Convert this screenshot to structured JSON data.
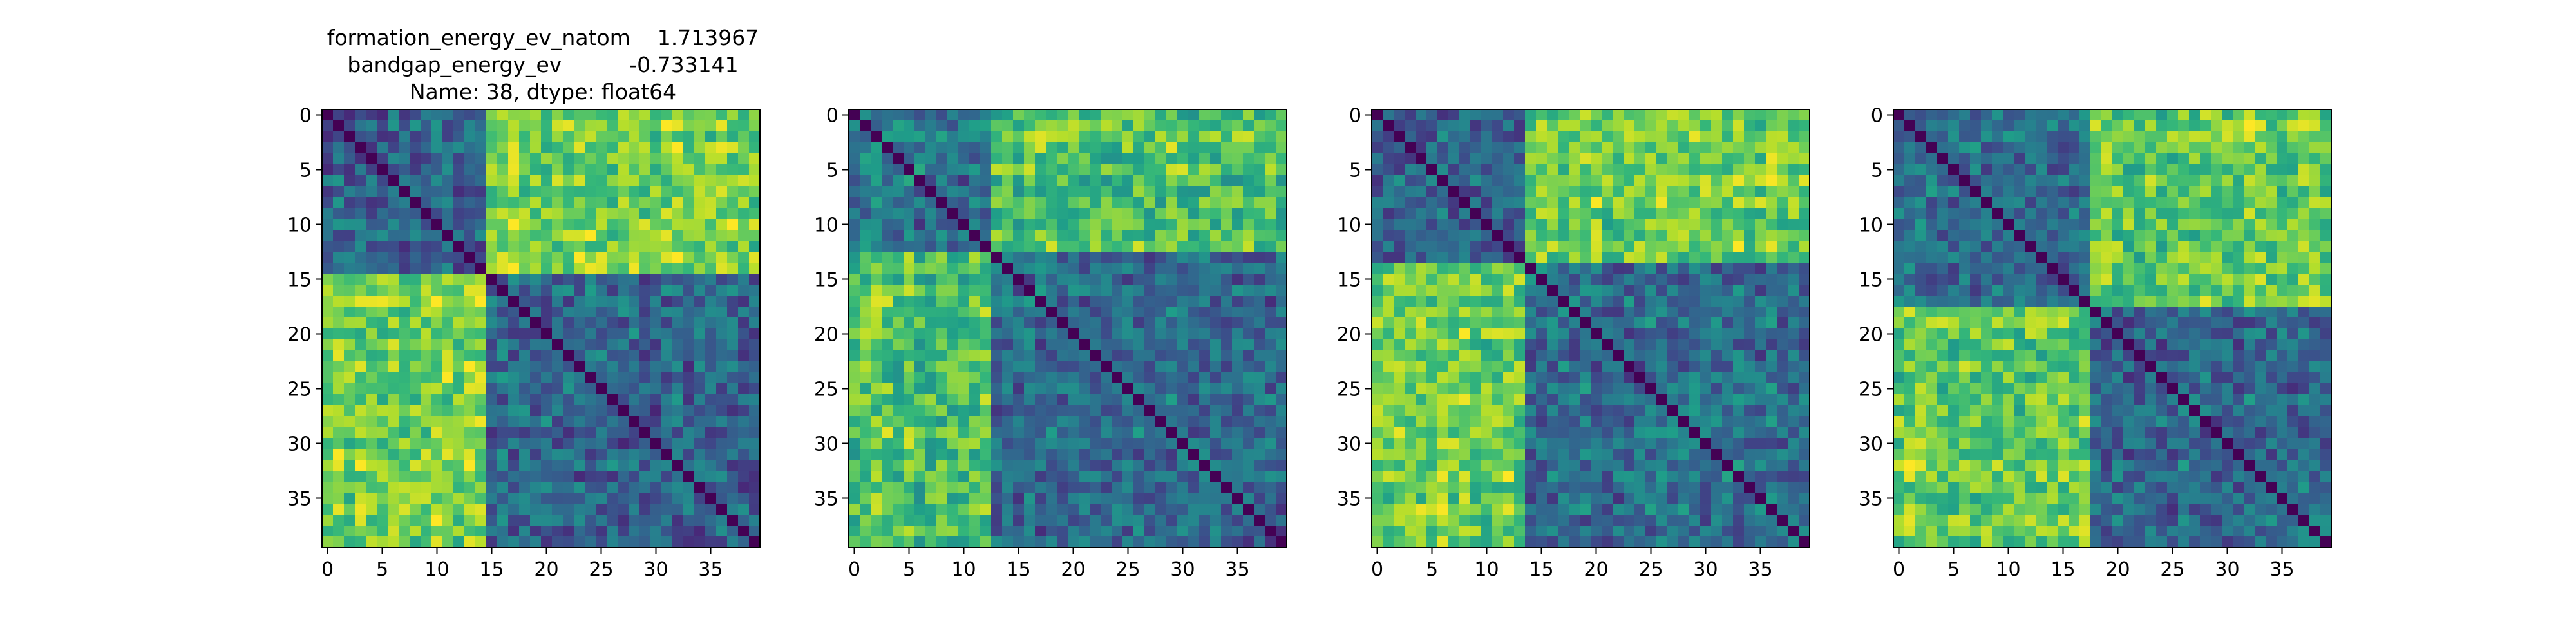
{
  "title_lines": [
    "formation_energy_ev_natom    1.713967",
    "bandgap_energy_ev          -0.733141",
    "Name: 38, dtype: float64"
  ],
  "colormap": "viridis",
  "colormap_stops": [
    "#440154",
    "#482878",
    "#3e4989",
    "#31688e",
    "#26828e",
    "#1f9e89",
    "#35b779",
    "#6ece58",
    "#b5de2b",
    "#fde725"
  ],
  "chart_data": [
    {
      "type": "heatmap",
      "description_size": 40,
      "xticks": [
        0,
        5,
        10,
        15,
        20,
        25,
        30,
        35
      ],
      "yticks": [
        0,
        5,
        10,
        15,
        20,
        25,
        30,
        35
      ],
      "block_split": 15,
      "block_levels": {
        "aa": 0.28,
        "bb": 0.26,
        "ab": 0.72
      }
    },
    {
      "type": "heatmap",
      "description_size": 40,
      "xticks": [
        0,
        5,
        10,
        15,
        20,
        25,
        30,
        35
      ],
      "yticks": [
        0,
        5,
        10,
        15,
        20,
        25,
        30,
        35
      ],
      "block_split": 13,
      "block_levels": {
        "aa": 0.32,
        "bb": 0.28,
        "ab": 0.65
      }
    },
    {
      "type": "heatmap",
      "description_size": 40,
      "xticks": [
        0,
        5,
        10,
        15,
        20,
        25,
        30,
        35
      ],
      "yticks": [
        0,
        5,
        10,
        15,
        20,
        25,
        30,
        35
      ],
      "block_split": 14,
      "block_levels": {
        "aa": 0.25,
        "bb": 0.3,
        "ab": 0.72
      }
    },
    {
      "type": "heatmap",
      "description_size": 40,
      "xticks": [
        0,
        5,
        10,
        15,
        20,
        25,
        30,
        35
      ],
      "yticks": [
        0,
        5,
        10,
        15,
        20,
        25,
        30,
        35
      ],
      "block_split": 18,
      "block_levels": {
        "aa": 0.3,
        "bb": 0.28,
        "ab": 0.7
      }
    }
  ]
}
